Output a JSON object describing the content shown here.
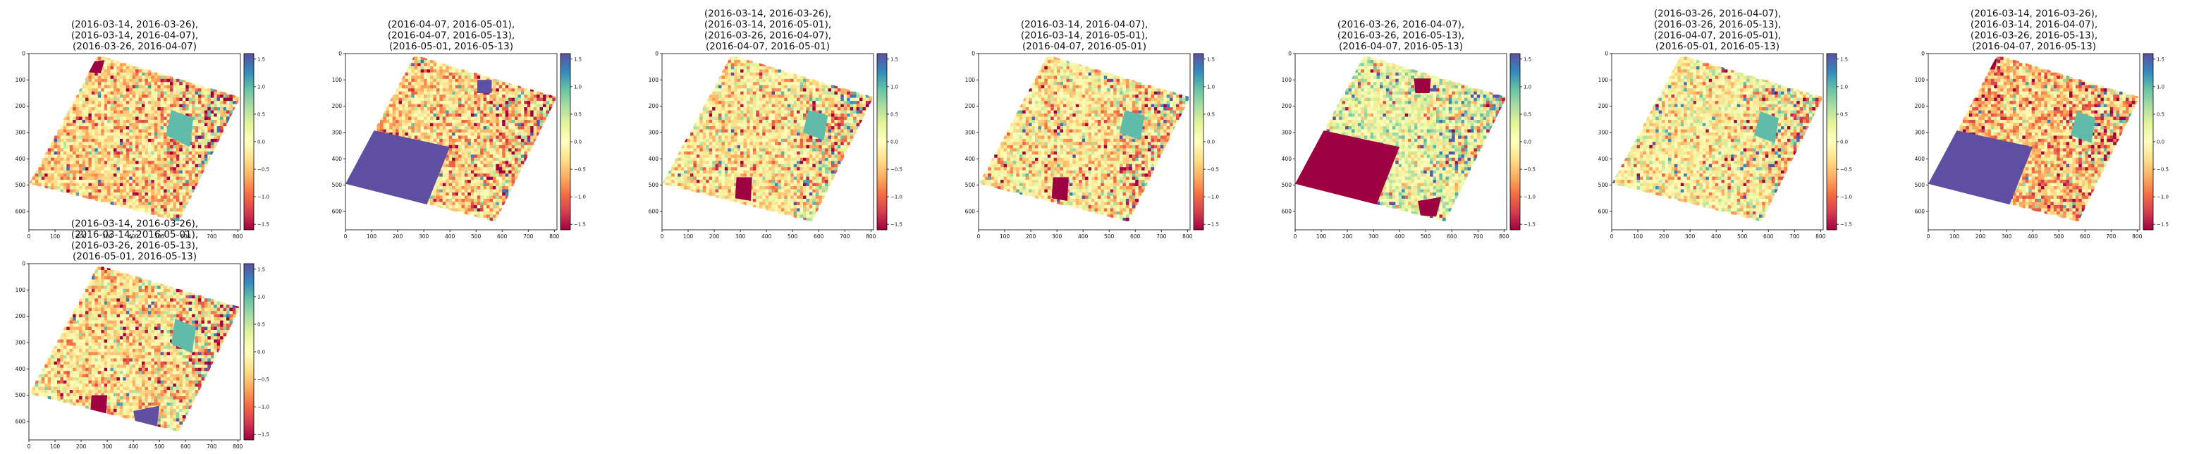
{
  "figure": {
    "panels": [
      {
        "title": [
          "(2016-03-14, 2016-03-26),",
          "(2016-03-14, 2016-04-07),",
          "(2016-03-26, 2016-04-07)"
        ]
      },
      {
        "title": [
          "(2016-04-07, 2016-05-01),",
          "(2016-04-07, 2016-05-13),",
          "(2016-05-01, 2016-05-13)"
        ]
      },
      {
        "title": [
          "(2016-03-14, 2016-03-26),",
          "(2016-03-14, 2016-05-01),",
          "(2016-03-26, 2016-04-07),",
          "(2016-04-07, 2016-05-01)"
        ]
      },
      {
        "title": [
          "(2016-03-14, 2016-04-07),",
          "(2016-03-14, 2016-05-01),",
          "(2016-04-07, 2016-05-01)"
        ]
      },
      {
        "title": [
          "(2016-03-26, 2016-04-07),",
          "(2016-03-26, 2016-05-13),",
          "(2016-04-07, 2016-05-13)"
        ]
      },
      {
        "title": [
          "(2016-03-26, 2016-04-07),",
          "(2016-03-26, 2016-05-13),",
          "(2016-04-07, 2016-05-01),",
          "(2016-05-01, 2016-05-13)"
        ]
      },
      {
        "title": [
          "(2016-03-14, 2016-03-26),",
          "(2016-03-14, 2016-04-07),",
          "(2016-03-26, 2016-05-13),",
          "(2016-04-07, 2016-05-13)"
        ]
      },
      {
        "title": [
          "(2016-03-14, 2016-03-26),",
          "(2016-03-14, 2016-05-01),",
          "(2016-03-26, 2016-05-13),",
          "(2016-05-01, 2016-05-13)"
        ]
      }
    ]
  },
  "chart_data": {
    "type": "heatmap",
    "colormap": "Spectral",
    "colormap_stops": [
      "#9e0142",
      "#d53e4f",
      "#f46d43",
      "#fdae61",
      "#fee08b",
      "#ffffbf",
      "#e6f598",
      "#abdda4",
      "#66c2a5",
      "#3288bd",
      "#5e4fa2"
    ],
    "x_ticks": [
      0,
      100,
      200,
      300,
      400,
      500,
      600,
      700,
      800
    ],
    "y_ticks": [
      0,
      100,
      200,
      300,
      400,
      500,
      600
    ],
    "xlim": [
      0,
      810
    ],
    "ylim": [
      670,
      0
    ],
    "colorbar_ticks": [
      "1.5",
      "1.0",
      "0.5",
      "0.0",
      "−0.5",
      "−1.0",
      "−1.5"
    ],
    "colorbar_values": [
      1.5,
      1.0,
      0.5,
      0.0,
      -0.5,
      -1.0,
      -1.5
    ],
    "clim": [
      -1.6,
      1.6
    ],
    "footprint": [
      [
        0,
        495
      ],
      [
        265,
        5
      ],
      [
        810,
        165
      ],
      [
        575,
        640
      ]
    ],
    "panels": [
      {
        "bias": -0.35,
        "noise": 0.6,
        "patches": [
          {
            "poly": [
              [
                210,
                35
              ],
              [
                290,
                25
              ],
              [
                275,
                75
              ],
              [
                215,
                70
              ]
            ],
            "value": -1.6
          },
          {
            "poly": [
              [
                545,
                215
              ],
              [
                630,
                245
              ],
              [
                615,
                355
              ],
              [
                525,
                310
              ]
            ],
            "value": 1.0
          }
        ]
      },
      {
        "bias": -0.35,
        "noise": 0.6,
        "patches": [
          {
            "poly": [
              [
                0,
                495
              ],
              [
                98,
                290
              ],
              [
                400,
                355
              ],
              [
                305,
                590
              ]
            ],
            "value": 1.6
          },
          {
            "poly": [
              [
                505,
                100
              ],
              [
                560,
                100
              ],
              [
                560,
                150
              ],
              [
                505,
                150
              ]
            ],
            "value": 1.6
          }
        ]
      },
      {
        "bias": -0.2,
        "noise": 0.6,
        "patches": [
          {
            "poly": [
              [
                285,
                470
              ],
              [
                345,
                470
              ],
              [
                340,
                560
              ],
              [
                280,
                550
              ]
            ],
            "value": -1.6
          },
          {
            "poly": [
              [
                560,
                215
              ],
              [
                635,
                235
              ],
              [
                620,
                330
              ],
              [
                540,
                300
              ]
            ],
            "value": 1.0
          }
        ]
      },
      {
        "bias": -0.2,
        "noise": 0.6,
        "patches": [
          {
            "poly": [
              [
                285,
                470
              ],
              [
                345,
                470
              ],
              [
                340,
                560
              ],
              [
                280,
                550
              ]
            ],
            "value": -1.6
          },
          {
            "poly": [
              [
                175,
                25
              ],
              [
                245,
                25
              ],
              [
                230,
                70
              ],
              [
                180,
                65
              ]
            ],
            "value": 1.6
          },
          {
            "poly": [
              [
                560,
                215
              ],
              [
                635,
                235
              ],
              [
                620,
                330
              ],
              [
                540,
                300
              ]
            ],
            "value": 1.0
          }
        ]
      },
      {
        "bias": 0.2,
        "noise": 0.55,
        "patches": [
          {
            "poly": [
              [
                0,
                495
              ],
              [
                98,
                290
              ],
              [
                400,
                355
              ],
              [
                305,
                590
              ]
            ],
            "value": -1.6
          },
          {
            "poly": [
              [
                455,
                95
              ],
              [
                520,
                95
              ],
              [
                515,
                150
              ],
              [
                460,
                150
              ]
            ],
            "value": -1.6
          },
          {
            "poly": [
              [
                470,
                560
              ],
              [
                560,
                545
              ],
              [
                540,
                620
              ],
              [
                480,
                615
              ]
            ],
            "value": -1.6
          }
        ]
      },
      {
        "bias": -0.1,
        "noise": 0.55,
        "patches": [
          {
            "poly": [
              [
                570,
                220
              ],
              [
                640,
                245
              ],
              [
                625,
                340
              ],
              [
                545,
                310
              ]
            ],
            "value": 1.0
          }
        ]
      },
      {
        "bias": -0.5,
        "noise": 0.6,
        "patches": [
          {
            "poly": [
              [
                0,
                495
              ],
              [
                98,
                290
              ],
              [
                400,
                355
              ],
              [
                305,
                590
              ]
            ],
            "value": 1.6
          },
          {
            "poly": [
              [
                200,
                20
              ],
              [
                265,
                20
              ],
              [
                255,
                60
              ],
              [
                205,
                60
              ]
            ],
            "value": -1.6
          },
          {
            "poly": [
              [
                570,
                220
              ],
              [
                640,
                245
              ],
              [
                625,
                340
              ],
              [
                545,
                310
              ]
            ],
            "value": 1.0
          }
        ]
      },
      {
        "bias": -0.25,
        "noise": 0.6,
        "patches": [
          {
            "poly": [
              [
                240,
                500
              ],
              [
                300,
                500
              ],
              [
                295,
                580
              ],
              [
                235,
                570
              ]
            ],
            "value": -1.6
          },
          {
            "poly": [
              [
                400,
                560
              ],
              [
                500,
                540
              ],
              [
                490,
                620
              ],
              [
                410,
                615
              ]
            ],
            "value": 1.6
          },
          {
            "poly": [
              [
                560,
                210
              ],
              [
                640,
                240
              ],
              [
                625,
                340
              ],
              [
                545,
                305
              ]
            ],
            "value": 1.0
          }
        ]
      }
    ]
  }
}
